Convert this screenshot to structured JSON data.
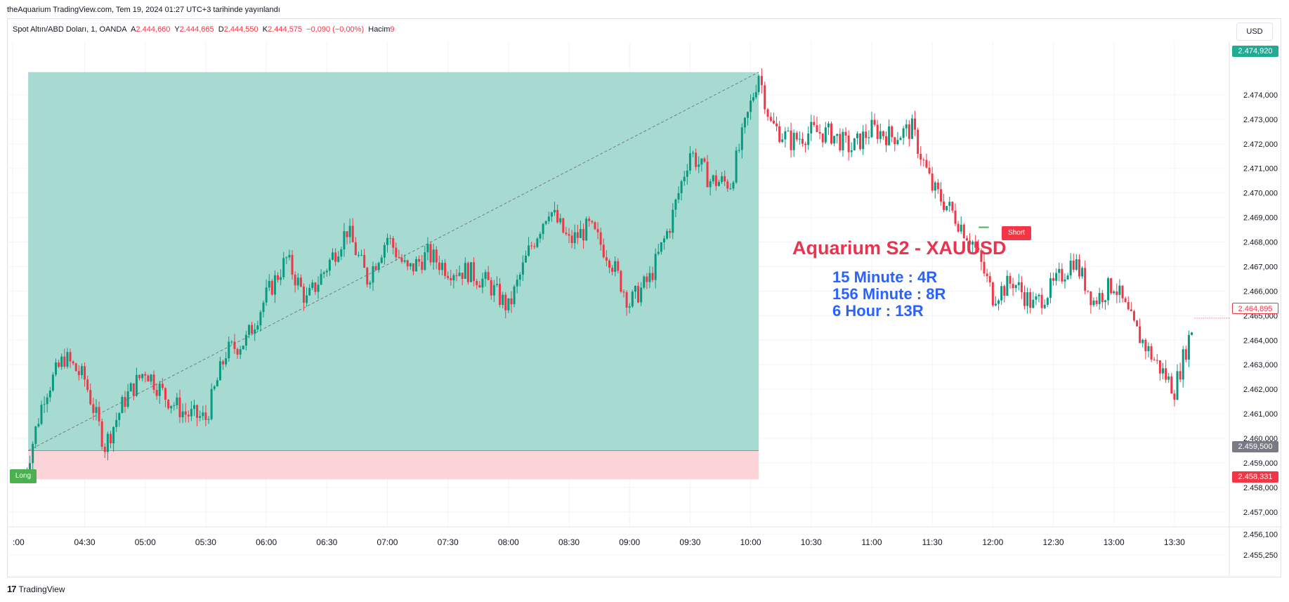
{
  "header": {
    "published": "theAquarium TradingView.com, Tem 19, 2024 01:27 UTC+3 tarihinde yayınlandı"
  },
  "legend": {
    "symbol": "Spot Altın/ABD Doları, 1, OANDA",
    "a_label": "A",
    "a_value": "2.444,660",
    "y_label": "Y",
    "y_value": "2.444,665",
    "d_label": "D",
    "d_value": "2.444,550",
    "k_label": "K",
    "k_value": "2.444,575",
    "change": "−0,090 (−0,00%)",
    "volume_label": "Hacim",
    "volume_value": "9"
  },
  "currency": "USD",
  "annotation": {
    "title": "Aquarium S2 - XAUUSD",
    "lines": [
      "15 Minute : 4R",
      "156 Minute : 8R",
      "6 Hour : 13R"
    ]
  },
  "markers": {
    "long": "Long",
    "short": "Short"
  },
  "price_tags": [
    {
      "value": "2.474,920",
      "color": "#22ab94",
      "style": "filled"
    },
    {
      "value": "2.464,895",
      "color": "#f23645",
      "style": "outline"
    },
    {
      "value": "2.459,500",
      "color": "#787b86",
      "style": "filled"
    },
    {
      "value": "2.458,331",
      "color": "#f23645",
      "style": "filled"
    }
  ],
  "footer": {
    "logo": "17",
    "brand": "TradingView"
  },
  "colors": {
    "up": "#089981",
    "down": "#f23645",
    "target_zone": "#a7dbd1",
    "stop_zone": "#fcd4d8"
  },
  "chart_data": {
    "type": "candlestick",
    "symbol": "Spot Altın/ABD Doları",
    "timeframe": "1",
    "x_ticks": [
      ":00",
      "04:30",
      "05:00",
      "05:30",
      "06:00",
      "06:30",
      "07:00",
      "07:30",
      "08:00",
      "08:30",
      "09:00",
      "09:30",
      "10:00",
      "10:30",
      "11:00",
      "11:30",
      "12:00",
      "12:30",
      "13:00",
      "13:30"
    ],
    "y_ticks": [
      "2.474,000",
      "2.473,000",
      "2.472,000",
      "2.471,000",
      "2.470,000",
      "2.469,000",
      "2.468,000",
      "2.467,000",
      "2.466,000",
      "2.465,000",
      "2.464,000",
      "2.463,000",
      "2.462,000",
      "2.461,000",
      "2.460,000",
      "2.459,000",
      "2.458,000",
      "2.457,000",
      "2.456,100",
      "2.455,250"
    ],
    "y_range": [
      2455.25,
      2475.8
    ],
    "position": {
      "side": "long",
      "entry": 2459.5,
      "target": 2474.92,
      "stop": 2458.331,
      "start_time": "04:02",
      "end_time": "10:04"
    },
    "short_signal": {
      "time": "11:55",
      "price": 2467.2
    },
    "series": [
      {
        "t": "04:00",
        "c": 2458.4
      },
      {
        "t": "04:10",
        "c": 2461.8
      },
      {
        "t": "04:20",
        "c": 2463.3
      },
      {
        "t": "04:30",
        "c": 2462.4
      },
      {
        "t": "04:40",
        "c": 2459.7
      },
      {
        "t": "04:50",
        "c": 2461.6
      },
      {
        "t": "05:00",
        "c": 2462.8
      },
      {
        "t": "05:10",
        "c": 2461.7
      },
      {
        "t": "05:20",
        "c": 2461.0
      },
      {
        "t": "05:30",
        "c": 2460.8
      },
      {
        "t": "05:40",
        "c": 2463.5
      },
      {
        "t": "05:50",
        "c": 2464.0
      },
      {
        "t": "06:00",
        "c": 2465.8
      },
      {
        "t": "06:10",
        "c": 2467.3
      },
      {
        "t": "06:20",
        "c": 2465.6
      },
      {
        "t": "06:30",
        "c": 2467.0
      },
      {
        "t": "06:40",
        "c": 2468.5
      },
      {
        "t": "06:50",
        "c": 2466.5
      },
      {
        "t": "07:00",
        "c": 2468.2
      },
      {
        "t": "07:10",
        "c": 2466.8
      },
      {
        "t": "07:20",
        "c": 2467.5
      },
      {
        "t": "07:30",
        "c": 2466.9
      },
      {
        "t": "07:40",
        "c": 2466.8
      },
      {
        "t": "07:50",
        "c": 2466.3
      },
      {
        "t": "08:00",
        "c": 2465.3
      },
      {
        "t": "08:10",
        "c": 2467.6
      },
      {
        "t": "08:20",
        "c": 2469.4
      },
      {
        "t": "08:30",
        "c": 2468.0
      },
      {
        "t": "08:40",
        "c": 2468.6
      },
      {
        "t": "08:50",
        "c": 2467.4
      },
      {
        "t": "09:00",
        "c": 2465.5
      },
      {
        "t": "09:10",
        "c": 2466.5
      },
      {
        "t": "09:20",
        "c": 2468.7
      },
      {
        "t": "09:30",
        "c": 2471.7
      },
      {
        "t": "09:40",
        "c": 2470.5
      },
      {
        "t": "09:50",
        "c": 2470.4
      },
      {
        "t": "10:00",
        "c": 2473.6
      },
      {
        "t": "10:04",
        "c": 2474.9
      },
      {
        "t": "10:10",
        "c": 2472.8
      },
      {
        "t": "10:20",
        "c": 2472.1
      },
      {
        "t": "10:30",
        "c": 2472.5
      },
      {
        "t": "10:40",
        "c": 2472.4
      },
      {
        "t": "10:50",
        "c": 2471.8
      },
      {
        "t": "11:00",
        "c": 2472.6
      },
      {
        "t": "11:10",
        "c": 2472.3
      },
      {
        "t": "11:20",
        "c": 2472.6
      },
      {
        "t": "11:30",
        "c": 2470.2
      },
      {
        "t": "11:40",
        "c": 2469.2
      },
      {
        "t": "11:50",
        "c": 2468.0
      },
      {
        "t": "12:00",
        "c": 2465.8
      },
      {
        "t": "12:10",
        "c": 2466.4
      },
      {
        "t": "12:20",
        "c": 2465.4
      },
      {
        "t": "12:30",
        "c": 2466.2
      },
      {
        "t": "12:40",
        "c": 2467.3
      },
      {
        "t": "12:50",
        "c": 2465.6
      },
      {
        "t": "13:00",
        "c": 2466.3
      },
      {
        "t": "13:10",
        "c": 2464.5
      },
      {
        "t": "13:20",
        "c": 2463.2
      },
      {
        "t": "13:30",
        "c": 2462.0
      },
      {
        "t": "13:40",
        "c": 2464.9
      }
    ]
  }
}
